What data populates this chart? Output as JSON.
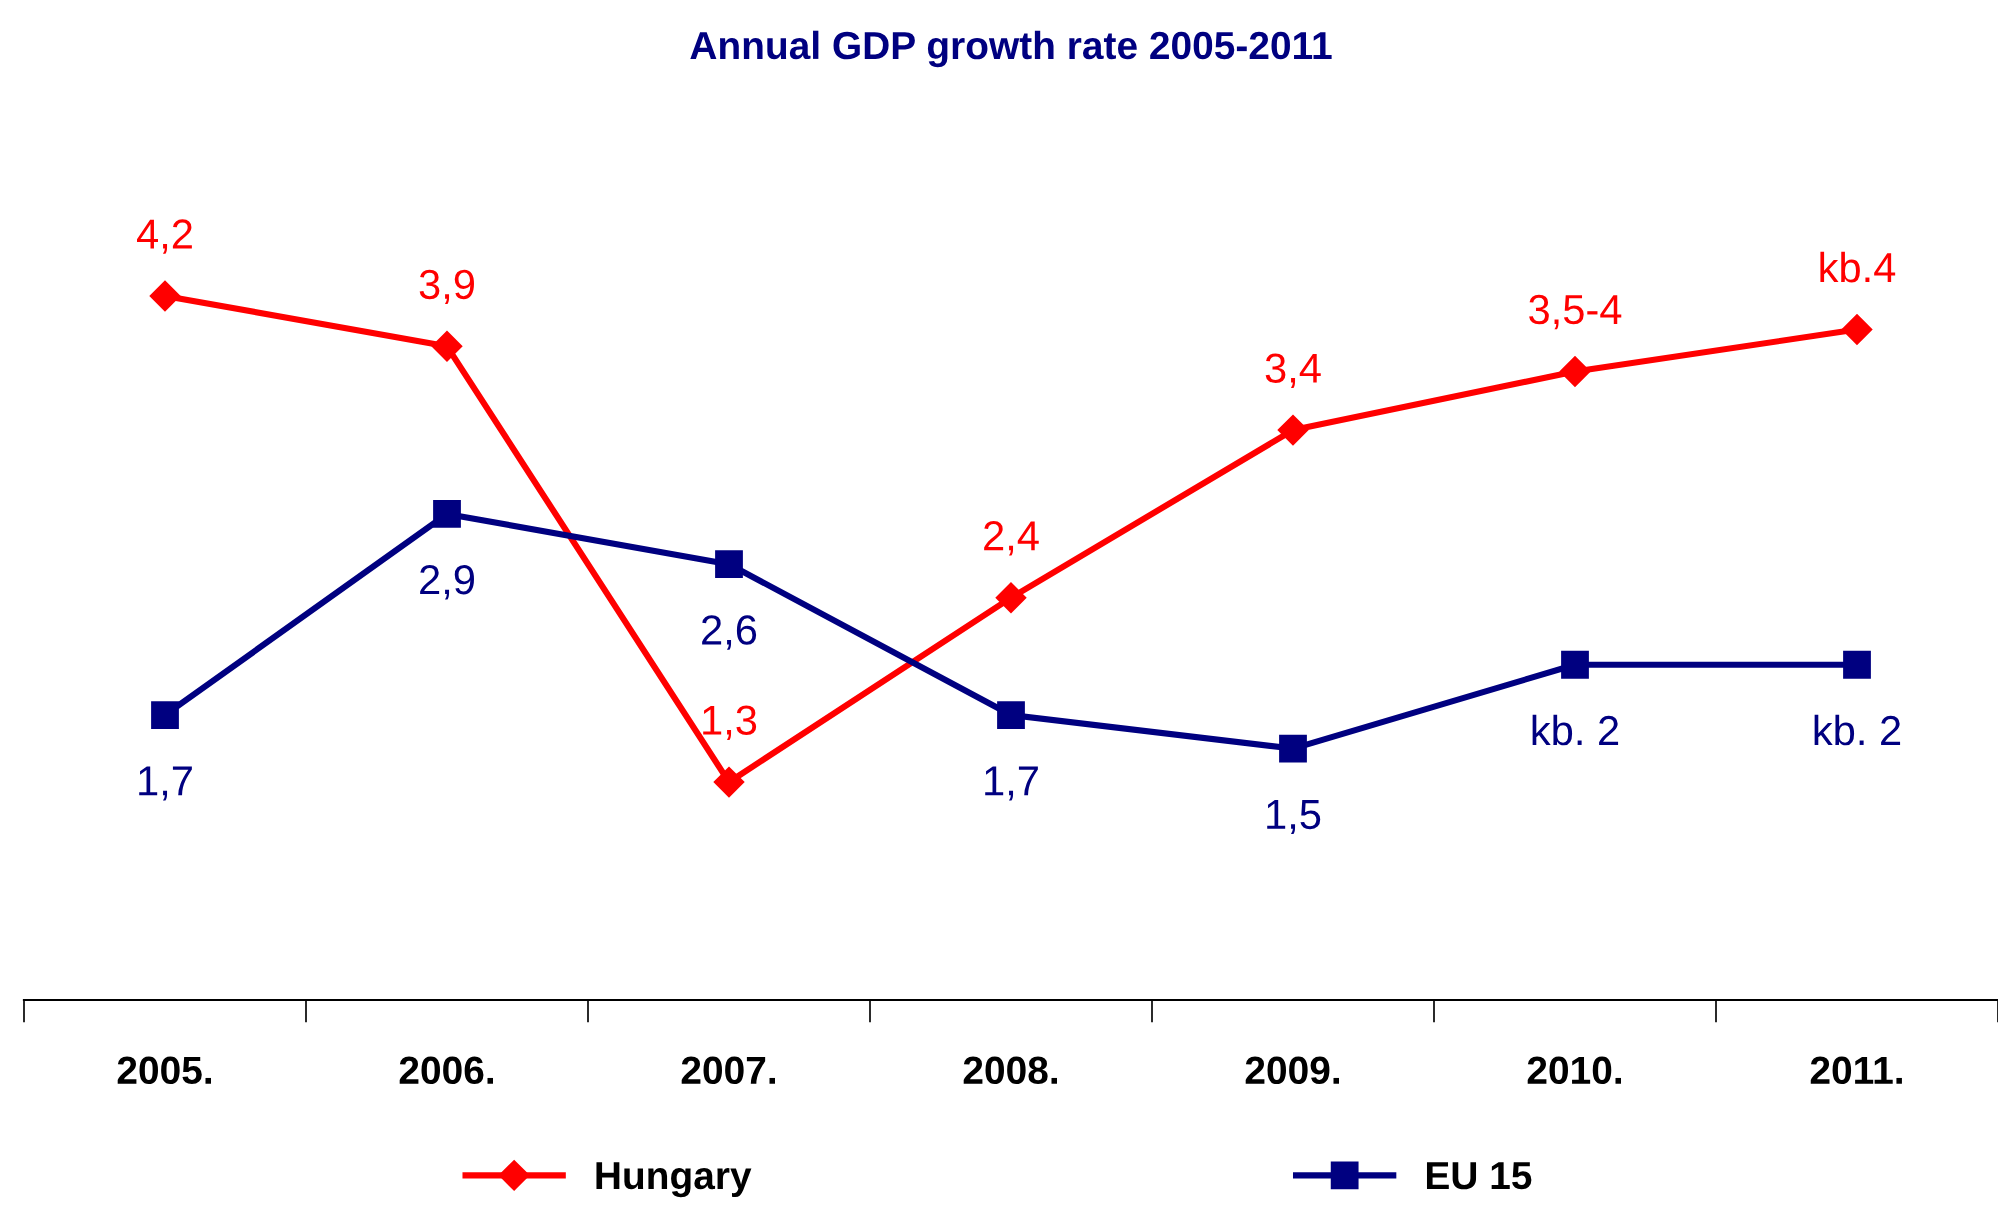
{
  "chart_data": {
    "type": "line",
    "title": "Annual GDP growth rate 2005-2011",
    "categories": [
      "2005.",
      "2006.",
      "2007.",
      "2008.",
      "2009.",
      "2010.",
      "2011."
    ],
    "series": [
      {
        "name": "Hungary",
        "color": "#ff0000",
        "marker": "diamond",
        "values": [
          4.2,
          3.9,
          1.3,
          2.4,
          3.4,
          3.75,
          4
        ],
        "value_labels": [
          "4,2",
          "3,9",
          "1,3",
          "2,4",
          "3,4",
          "3,5-4",
          "kb.4"
        ]
      },
      {
        "name": "EU 15",
        "color": "#000080",
        "marker": "square",
        "values": [
          1.7,
          2.9,
          2.6,
          1.7,
          1.5,
          2,
          2
        ],
        "value_labels": [
          "1,7",
          "2,9",
          "2,6",
          "1,7",
          "1,5",
          "kb. 2",
          "kb. 2"
        ]
      }
    ],
    "legend": "bottom",
    "grid": false,
    "line_style": "solid"
  }
}
